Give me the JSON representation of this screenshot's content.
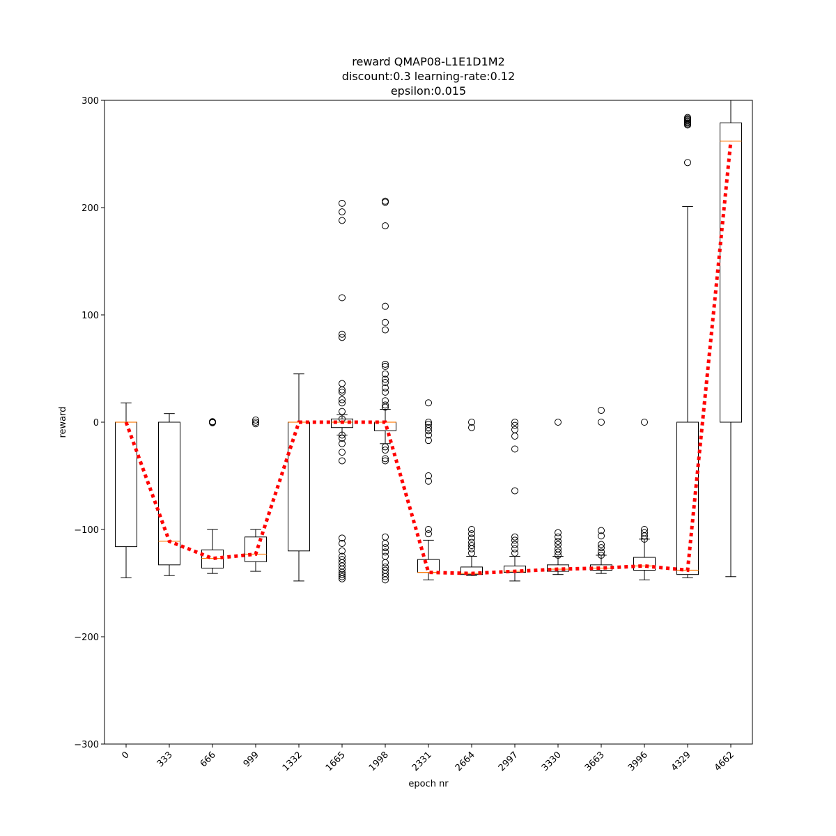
{
  "chart_data": {
    "type": "box",
    "title_lines": [
      "reward QMAP08-L1E1D1M2",
      "discount:0.3 learning-rate:0.12",
      "epsilon:0.015"
    ],
    "xlabel": "epoch nr",
    "ylabel": "reward",
    "ylim": [
      -300,
      300
    ],
    "yticks": [
      -300,
      -200,
      -100,
      0,
      100,
      200,
      300
    ],
    "yticklabels": [
      "−300",
      "−200",
      "−100",
      "0",
      "100",
      "200",
      "300"
    ],
    "categories": [
      "0",
      "333",
      "666",
      "999",
      "1332",
      "1665",
      "1998",
      "2331",
      "2664",
      "2997",
      "3330",
      "3663",
      "3996",
      "4329",
      "4662"
    ],
    "boxes": [
      {
        "category": "0",
        "whisker_low": -145,
        "q1": -116,
        "median": 0,
        "q3": 0,
        "whisker_high": 18,
        "outliers": []
      },
      {
        "category": "333",
        "whisker_low": -143,
        "q1": -133,
        "median": -111,
        "q3": 0,
        "whisker_high": 8,
        "outliers": []
      },
      {
        "category": "666",
        "whisker_low": -141,
        "q1": -136,
        "median": -127,
        "q3": -119,
        "whisker_high": -100,
        "outliers": [
          0,
          0.5,
          -0.5
        ]
      },
      {
        "category": "999",
        "whisker_low": -139,
        "q1": -130,
        "median": -123,
        "q3": -107,
        "whisker_high": -100,
        "outliers": [
          2,
          0,
          -1.5
        ]
      },
      {
        "category": "1332",
        "whisker_low": -148,
        "q1": -120,
        "median": 0,
        "q3": 0,
        "whisker_high": 45,
        "outliers": []
      },
      {
        "category": "1665",
        "whisker_low": -12,
        "q1": -5,
        "median": 0,
        "q3": 3,
        "whisker_high": 7,
        "outliers": [
          204,
          196,
          188,
          116,
          82,
          79,
          36,
          30,
          28,
          21,
          18,
          10,
          3,
          -12,
          -15,
          -20,
          -28,
          -36,
          -108,
          -113,
          -120,
          -125,
          -128,
          -131,
          -134,
          -137,
          -140,
          -142,
          -144,
          -146
        ]
      },
      {
        "category": "1998",
        "whisker_low": -20,
        "q1": -8,
        "median": 0,
        "q3": 0,
        "whisker_high": 12,
        "outliers": [
          206,
          205,
          183,
          108,
          93,
          86,
          54,
          52,
          45,
          40,
          37,
          32,
          28,
          20,
          16,
          14,
          -23,
          -26,
          -34,
          -36,
          -107,
          -113,
          -117,
          -121,
          -125,
          -131,
          -135,
          -138,
          -141,
          -144,
          -147
        ]
      },
      {
        "category": "2331",
        "whisker_low": -147,
        "q1": -140,
        "median": -140,
        "q3": -128,
        "whisker_high": -110,
        "outliers": [
          18,
          0,
          -2,
          -5,
          -8,
          -12,
          -17,
          -50,
          -55,
          -100,
          -104
        ]
      },
      {
        "category": "2664",
        "whisker_low": -143,
        "q1": -142,
        "median": -141,
        "q3": -135,
        "whisker_high": -125,
        "outliers": [
          0,
          -5,
          -100,
          -104,
          -108,
          -112,
          -115,
          -118,
          -122
        ]
      },
      {
        "category": "2997",
        "whisker_low": -148,
        "q1": -140,
        "median": -139,
        "q3": -134,
        "whisker_high": -125,
        "outliers": [
          0,
          -3,
          -7,
          -13,
          -25,
          -64,
          -107,
          -110,
          -114,
          -118,
          -122
        ]
      },
      {
        "category": "3330",
        "whisker_low": -142,
        "q1": -139,
        "median": -137,
        "q3": -133,
        "whisker_high": -125,
        "outliers": [
          0,
          -103,
          -107,
          -111,
          -114,
          -118,
          -121,
          -124
        ]
      },
      {
        "category": "3663",
        "whisker_low": -141,
        "q1": -138,
        "median": -136,
        "q3": -133,
        "whisker_high": -124,
        "outliers": [
          11,
          0,
          -101,
          -106,
          -114,
          -117,
          -121,
          -124
        ]
      },
      {
        "category": "3996",
        "whisker_low": -147,
        "q1": -138,
        "median": -134,
        "q3": -126,
        "whisker_high": -109,
        "outliers": [
          0,
          -100,
          -103,
          -106,
          -109
        ]
      },
      {
        "category": "4329",
        "whisker_low": -145,
        "q1": -142,
        "median": -138,
        "q3": 0,
        "whisker_high": 201,
        "outliers": [
          242,
          277,
          278,
          279,
          280,
          281,
          282,
          283,
          284
        ]
      },
      {
        "category": "4662",
        "whisker_low": -144,
        "q1": 0,
        "median": 262,
        "q3": 279,
        "whisker_high": 300,
        "outliers": []
      }
    ],
    "median_line": {
      "style": "dotted",
      "color": "#ff0000",
      "values": [
        0,
        -111,
        -127,
        -123,
        0,
        0,
        0,
        -140,
        -141,
        -139,
        -137,
        -136,
        -134,
        -138,
        262
      ]
    },
    "colors": {
      "box": "#000000",
      "median": "#ff7f0e",
      "trend": "#ff0000"
    },
    "grid": false
  }
}
